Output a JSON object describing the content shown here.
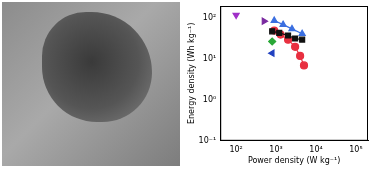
{
  "chart_data": {
    "type": "scatter",
    "log": true,
    "grid": false,
    "x_label": "Power density (W kg⁻¹)",
    "y_label": "Energy density (Wh kg⁻¹)",
    "xlim": [
      40,
      200000
    ],
    "ylim": [
      0.1,
      200
    ],
    "xticks": [
      {
        "value": 100,
        "label": "10²"
      },
      {
        "value": 1000,
        "label": "10³"
      },
      {
        "value": 10000,
        "label": "10⁴"
      },
      {
        "value": 100000,
        "label": "10⁵"
      }
    ],
    "yticks": [
      {
        "value": 0.1,
        "label": "10⁻¹"
      },
      {
        "value": 1,
        "label": "10⁰"
      },
      {
        "value": 10,
        "label": "10¹"
      },
      {
        "value": 100,
        "label": "10²"
      }
    ],
    "series": [
      {
        "color": "#a030c8",
        "marker": "triangle-down",
        "line_style": "none",
        "x": [
          100
        ],
        "values": [
          120
        ]
      },
      {
        "color": "#7a2aa0",
        "marker": "triangle-right",
        "line_style": "none",
        "x": [
          500
        ],
        "values": [
          85
        ]
      },
      {
        "color": "#3b6fe0",
        "marker": "triangle-up",
        "line_style": "solid",
        "x": [
          900,
          1500,
          2500,
          4500
        ],
        "values": [
          88,
          70,
          55,
          42
        ]
      },
      {
        "color": "#111111",
        "marker": "square",
        "line_style": "solid",
        "x": [
          800,
          1200,
          2000,
          3000,
          4500
        ],
        "values": [
          48,
          44,
          38,
          32,
          30
        ]
      },
      {
        "color": "#e83040",
        "marker": "circle",
        "line_style": "solid",
        "x": [
          900,
          1300,
          2000,
          3000,
          4000,
          5000
        ],
        "values": [
          50,
          40,
          30,
          20,
          12,
          7
        ]
      },
      {
        "color": "#2aa838",
        "marker": "diamond",
        "line_style": "none",
        "x": [
          800
        ],
        "values": [
          27
        ]
      },
      {
        "color": "#2040c0",
        "marker": "triangle-left",
        "line_style": "none",
        "x": [
          800
        ],
        "values": [
          14
        ]
      }
    ]
  }
}
